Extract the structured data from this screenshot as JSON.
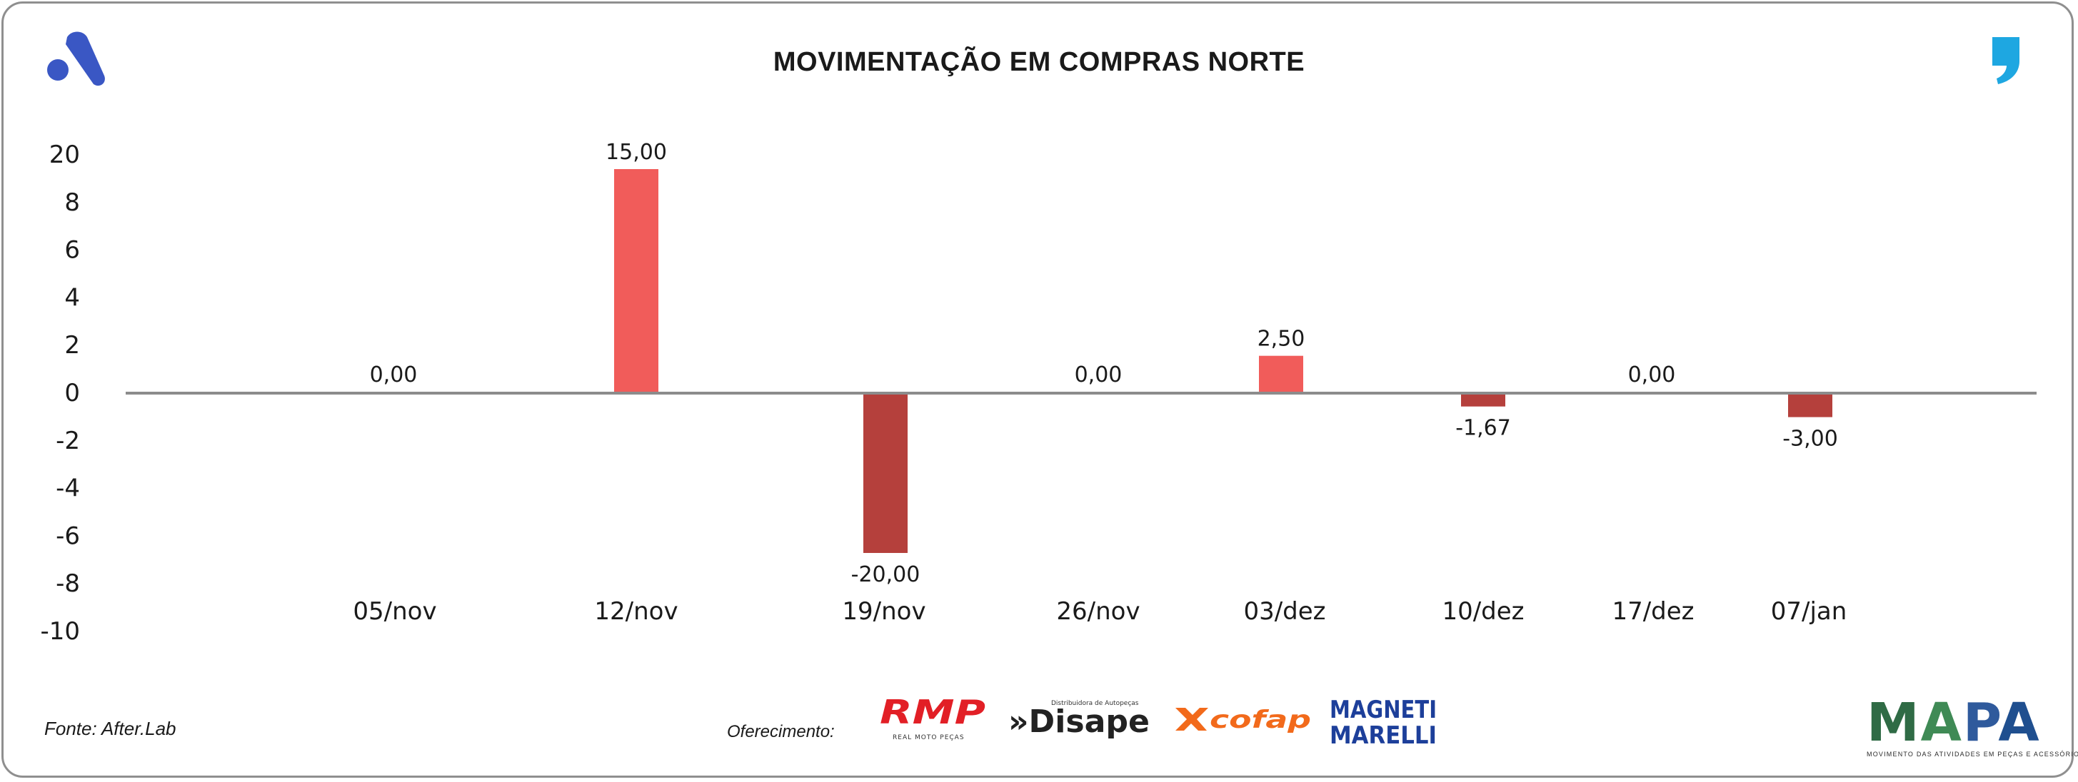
{
  "chart_data": {
    "type": "bar",
    "title": "MOVIMENTAÇÃO EM COMPRAS NORTE",
    "categories": [
      "05/nov",
      "12/nov",
      "19/nov",
      "26/nov",
      "03/dez",
      "10/dez",
      "17/dez",
      "07/jan"
    ],
    "values": [
      0,
      15,
      -20,
      0,
      2.5,
      -1.67,
      0,
      -3
    ],
    "data_labels": [
      "0,00",
      "15,00",
      "-20,00",
      "0,00",
      "2,50",
      "-1,67",
      "0,00",
      "-3,00"
    ],
    "y_tick_labels": [
      "20",
      "8",
      "6",
      "4",
      "2",
      "0",
      "-2",
      "-4",
      "-6",
      "-8",
      "-10"
    ],
    "xlabel": "",
    "ylabel": "",
    "grid": false,
    "legend": "none",
    "colors": {
      "positive": "#f15c5a",
      "negative": "#b5403c",
      "axis": "#8c8c8c"
    }
  },
  "source": "Fonte: After.Lab",
  "sponsor_label": "Oferecimento:",
  "sponsors": {
    "rmp": {
      "name": "RMP",
      "tagline": "REAL MOTO PEÇAS"
    },
    "disape": {
      "name": "»Disape",
      "tagline": "Distribuidora de Autopeças"
    },
    "cofap": {
      "name": "cofap"
    },
    "magneti": {
      "line1": "MAGNETI",
      "line2": "MARELLI"
    }
  },
  "brand": {
    "mapa": "MAPA",
    "mapa_sub": "MOVIMENTO DAS ATIVIDADES EM PEÇAS E ACESSÓRIOS"
  },
  "icons": {
    "top_left": "afterlab-logo-icon",
    "top_right": "quote-comma-icon"
  }
}
